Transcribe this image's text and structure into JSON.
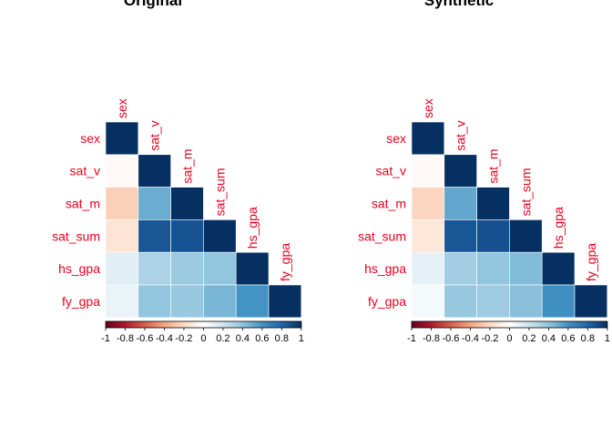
{
  "chart_data": [
    {
      "type": "heatmap",
      "title": "Original",
      "variables": [
        "sex",
        "sat_v",
        "sat_m",
        "sat_sum",
        "hs_gpa",
        "fy_gpa"
      ],
      "matrix": [
        [
          1.0,
          null,
          null,
          null,
          null,
          null
        ],
        [
          -0.03,
          1.0,
          null,
          null,
          null,
          null
        ],
        [
          -0.24,
          0.5,
          1.0,
          null,
          null,
          null
        ],
        [
          -0.15,
          0.86,
          0.87,
          1.0,
          null,
          null
        ],
        [
          0.13,
          0.32,
          0.37,
          0.4,
          1.0,
          null
        ],
        [
          0.09,
          0.4,
          0.38,
          0.46,
          0.6,
          1.0
        ]
      ],
      "colorbar": {
        "min": -1,
        "max": 1,
        "ticks": [
          "-1",
          "-0.8",
          "-0.6",
          "-0.4",
          "-0.2",
          "0",
          "0.2",
          "0.4",
          "0.6",
          "0.8",
          "1"
        ]
      }
    },
    {
      "type": "heatmap",
      "title": "Synthetic",
      "variables": [
        "sex",
        "sat_v",
        "sat_m",
        "sat_sum",
        "hs_gpa",
        "fy_gpa"
      ],
      "matrix": [
        [
          1.0,
          null,
          null,
          null,
          null,
          null
        ],
        [
          -0.03,
          1.0,
          null,
          null,
          null,
          null
        ],
        [
          -0.22,
          0.52,
          1.0,
          null,
          null,
          null
        ],
        [
          -0.14,
          0.86,
          0.88,
          1.0,
          null,
          null
        ],
        [
          0.11,
          0.35,
          0.4,
          0.44,
          1.0,
          null
        ],
        [
          0.05,
          0.38,
          0.36,
          0.42,
          0.62,
          1.0
        ]
      ],
      "colorbar": {
        "min": -1,
        "max": 1,
        "ticks": [
          "-1",
          "-0.8",
          "-0.6",
          "-0.4",
          "-0.2",
          "0",
          "0.2",
          "0.4",
          "0.6",
          "0.8",
          "1"
        ]
      }
    }
  ]
}
